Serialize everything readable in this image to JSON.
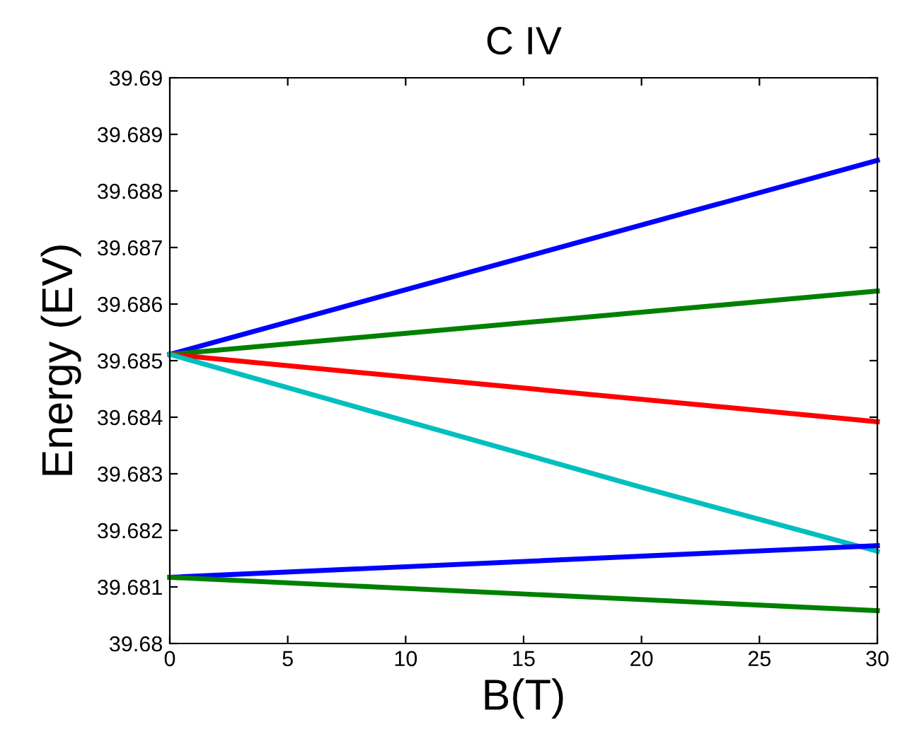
{
  "chart_data": {
    "type": "line",
    "title": "C IV",
    "xlabel": "B(T)",
    "ylabel": "Energy (EV)",
    "x": [
      0,
      30
    ],
    "series": [
      {
        "color": "#0000ff",
        "values": [
          39.68511,
          39.68854
        ]
      },
      {
        "color": "#008000",
        "values": [
          39.68511,
          39.68623
        ]
      },
      {
        "color": "#ff0000",
        "values": [
          39.68511,
          39.68392
        ]
      },
      {
        "color": "#00bfbf",
        "x": [
          0,
          20,
          30
        ],
        "values": [
          39.68511,
          39.68276,
          39.68163
        ]
      },
      {
        "color": "#0000ff",
        "values": [
          39.68117,
          39.68173
        ]
      },
      {
        "color": "#008000",
        "values": [
          39.68117,
          39.68058
        ]
      }
    ],
    "xlim": [
      0,
      30
    ],
    "xticks": [
      0,
      5,
      10,
      15,
      20,
      25,
      30
    ],
    "ylim": [
      39.68,
      39.69
    ],
    "yticks": [
      {
        "value": 39.68,
        "label": "39.68"
      },
      39.681,
      39.682,
      39.683,
      39.684,
      39.685,
      39.686,
      39.687,
      39.688,
      39.689,
      {
        "value": 39.69,
        "label": "39.69"
      }
    ],
    "grid": false,
    "legend": false,
    "marker": "none",
    "line_style": "solid"
  }
}
